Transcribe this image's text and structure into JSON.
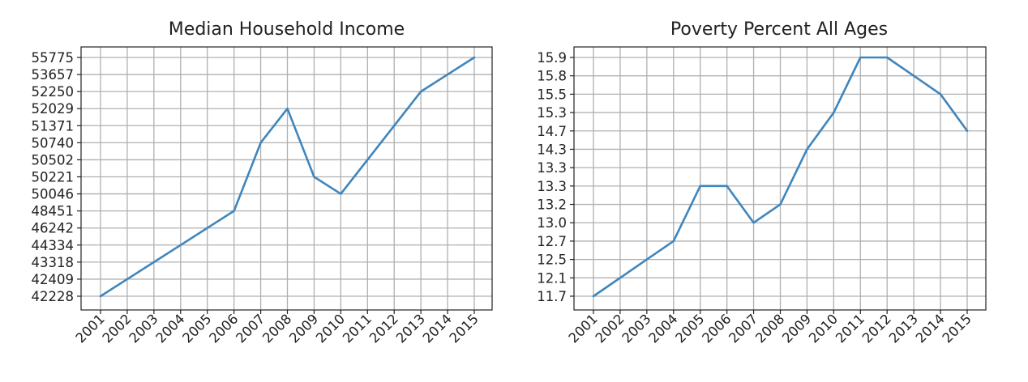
{
  "chart_data": [
    {
      "type": "line",
      "title": "Median Household Income",
      "xlabel": "",
      "ylabel": "",
      "categorical_y": true,
      "grid": true,
      "x": [
        "2001",
        "2002",
        "2003",
        "2004",
        "2005",
        "2006",
        "2007",
        "2008",
        "2009",
        "2010",
        "2011",
        "2012",
        "2013",
        "2014",
        "2015"
      ],
      "y_ticks": [
        "42228",
        "42409",
        "43318",
        "44334",
        "46242",
        "48451",
        "50046",
        "50221",
        "50502",
        "50740",
        "51371",
        "52029",
        "52250",
        "53657",
        "55775"
      ],
      "series": [
        {
          "color": "#3f86bd",
          "values": [
            "42228",
            "42409",
            "43318",
            "44334",
            "46242",
            "48451",
            "50740",
            "52029",
            "50221",
            "50046",
            "50502",
            "51371",
            "52250",
            "53657",
            "55775"
          ]
        }
      ]
    },
    {
      "type": "line",
      "title": "Poverty Percent All Ages",
      "xlabel": "",
      "ylabel": "",
      "categorical_y": true,
      "grid": true,
      "x": [
        "2001",
        "2002",
        "2003",
        "2004",
        "2005",
        "2006",
        "2007",
        "2008",
        "2009",
        "2010",
        "2011",
        "2012",
        "2013",
        "2014",
        "2015"
      ],
      "y_ticks": [
        "11.7",
        "12.1",
        "12.5",
        "12.7",
        "13.0",
        "13.2",
        "13.3",
        "13.3",
        "14.3",
        "14.7",
        "15.3",
        "15.5",
        "15.8",
        "15.9"
      ],
      "series": [
        {
          "color": "#3f86bd",
          "values": [
            "11.7",
            "12.1",
            "12.5",
            "12.7",
            "13.3",
            "13.3",
            "13.0",
            "13.2",
            "14.3",
            "15.3",
            "15.9",
            "15.9",
            "15.8",
            "15.5",
            "14.7"
          ]
        }
      ]
    }
  ]
}
